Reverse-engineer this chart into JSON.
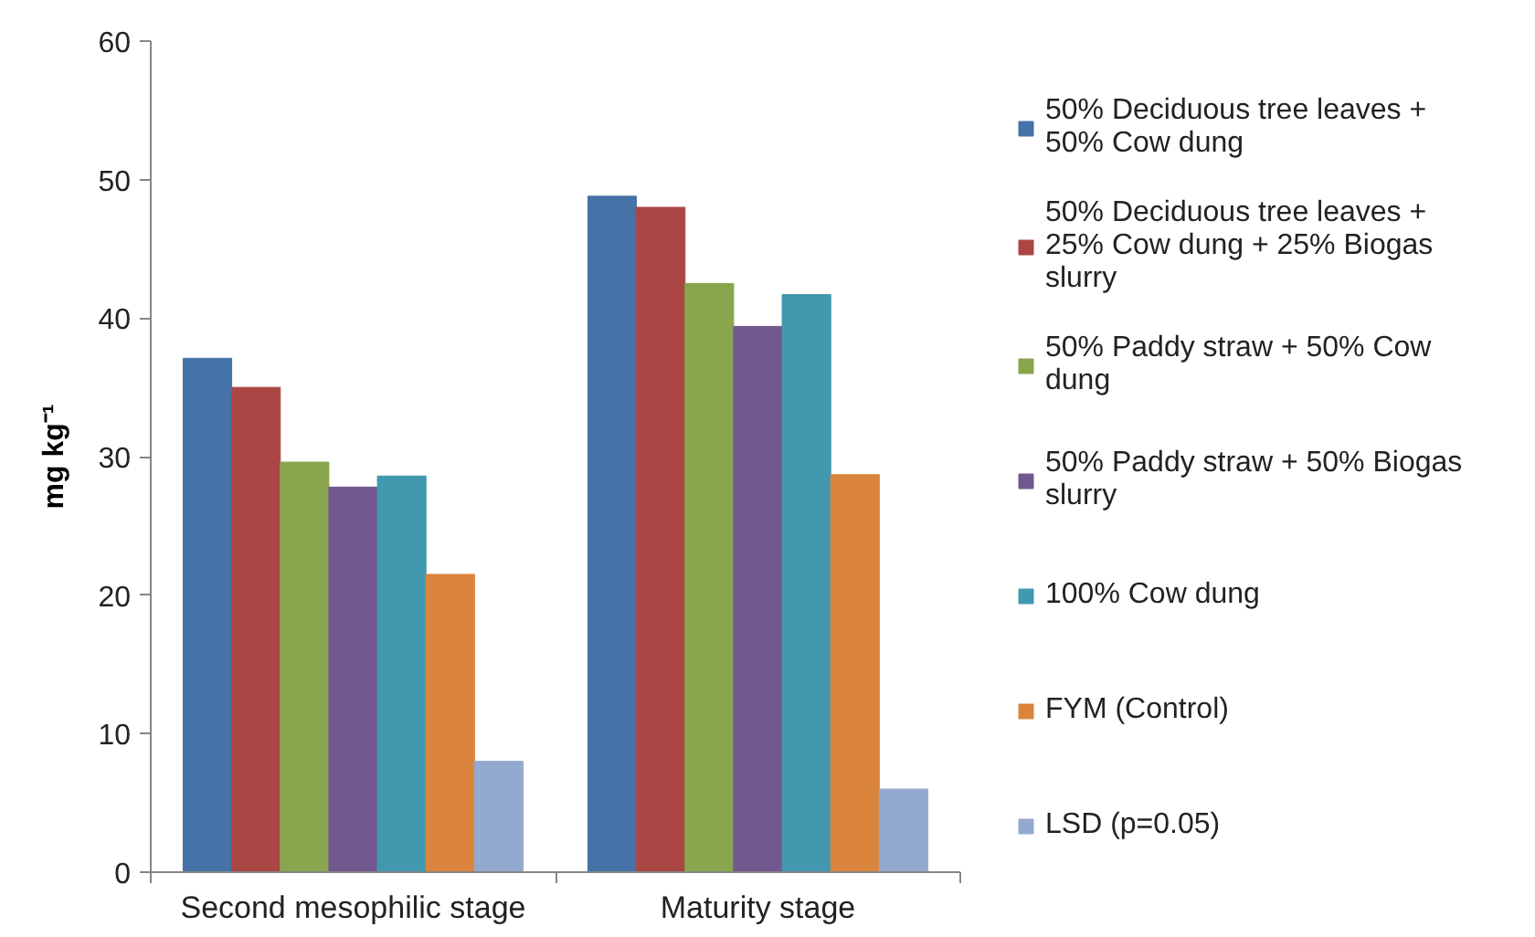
{
  "chart_data": {
    "type": "bar",
    "ylabel": "mg kg⁻¹",
    "categories": [
      "Second mesophilic stage",
      "Maturity stage"
    ],
    "series": [
      {
        "name": "50% Deciduous tree leaves + 50% Cow dung",
        "color": "#4572a7",
        "values": [
          37.1,
          48.8
        ]
      },
      {
        "name": "50% Deciduous tree leaves + 25% Cow dung + 25% Biogas slurry",
        "color": "#aa4643",
        "values": [
          35.0,
          48.0
        ]
      },
      {
        "name": "50% Paddy straw + 50% Cow dung",
        "color": "#89a54e",
        "values": [
          29.6,
          42.5
        ]
      },
      {
        "name": "50% Paddy straw + 50% Biogas slurry",
        "color": "#71588f",
        "values": [
          27.8,
          39.4
        ]
      },
      {
        "name": "100% Cow dung",
        "color": "#4198af",
        "values": [
          28.6,
          41.7
        ]
      },
      {
        "name": "FYM (Control)",
        "color": "#db843d",
        "values": [
          21.5,
          28.7
        ]
      },
      {
        "name": "LSD (p=0.05)",
        "color": "#93a9cf",
        "values": [
          8.0,
          6.0
        ]
      }
    ],
    "ylim": [
      0,
      60
    ],
    "yticks": [
      0,
      10,
      20,
      30,
      40,
      50,
      60
    ],
    "grid": false,
    "legend": "right"
  }
}
